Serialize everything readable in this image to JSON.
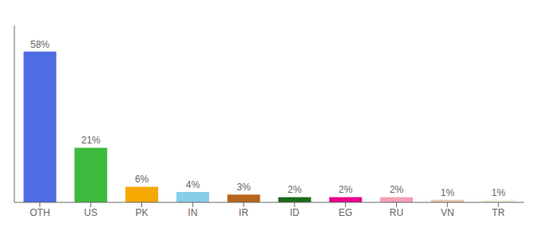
{
  "chart_data": {
    "type": "bar",
    "categories": [
      "OTH",
      "US",
      "PK",
      "IN",
      "IR",
      "ID",
      "EG",
      "RU",
      "VN",
      "TR"
    ],
    "values": [
      58,
      21,
      6,
      4,
      3,
      2,
      2,
      2,
      1,
      1
    ],
    "value_labels": [
      "58%",
      "21%",
      "6%",
      "4%",
      "3%",
      "2%",
      "2%",
      "2%",
      "1%",
      "1%"
    ],
    "colors": [
      "#4d6de3",
      "#3dba3d",
      "#f5a800",
      "#87ceeb",
      "#b5651d",
      "#1a6b1a",
      "#e8008a",
      "#f4a0b5",
      "#e8c8b0",
      "#f5f0dc"
    ],
    "ylim": [
      0,
      68
    ],
    "data_labels": true,
    "tick_labels": "x",
    "grid": false
  }
}
